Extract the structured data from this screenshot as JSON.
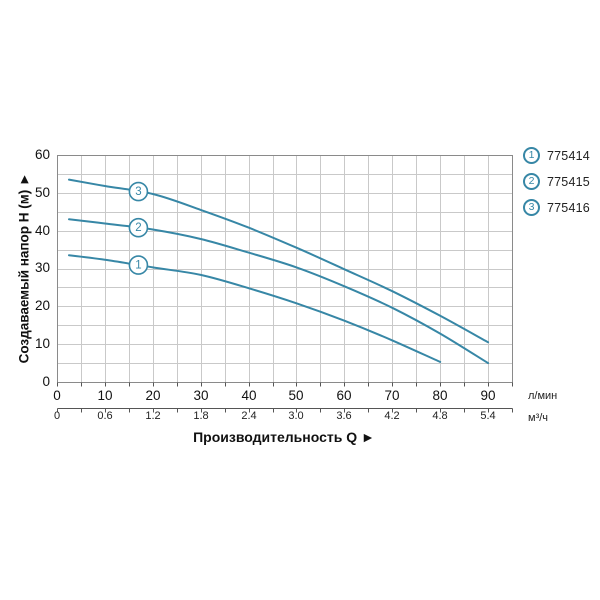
{
  "page": {
    "background": "#ffffff"
  },
  "colors": {
    "accent": "#3787a6",
    "grid": "#c9c9c9",
    "frame": "#8a8a8a",
    "axis": "#555555",
    "text": "#111111"
  },
  "chart_data": {
    "type": "line",
    "title": "",
    "xlabel": "Производительность Q ►",
    "ylabel": "Создаваемый напор H (м) ►",
    "xlim": [
      0,
      95
    ],
    "ylim": [
      0,
      60
    ],
    "grid_step": 5,
    "grid": true,
    "legend_position": "top-right",
    "y_axis": {
      "ticks": [
        "0",
        "10",
        "20",
        "30",
        "40",
        "50",
        "60"
      ]
    },
    "x_axis_primary": {
      "unit": "л/мин",
      "ticks": [
        "0",
        "10",
        "20",
        "30",
        "40",
        "50",
        "60",
        "70",
        "80",
        "90"
      ]
    },
    "x_axis_secondary": {
      "unit": "м³/ч",
      "ticks": [
        "0",
        "0.6",
        "1.2",
        "1.8",
        "2.4",
        "3.0",
        "3.6",
        "4.2",
        "4.8",
        "5.4"
      ]
    },
    "series": [
      {
        "id": "1",
        "model": "775414",
        "label_q": 17,
        "points": [
          [
            2.5,
            33.5
          ],
          [
            10,
            32.3
          ],
          [
            20,
            30.3
          ],
          [
            30,
            28.3
          ],
          [
            40,
            24.8
          ],
          [
            50,
            20.8
          ],
          [
            60,
            16.2
          ],
          [
            70,
            11
          ],
          [
            80,
            5.3
          ]
        ]
      },
      {
        "id": "2",
        "model": "775415",
        "label_q": 17,
        "points": [
          [
            2.5,
            43
          ],
          [
            10,
            41.9
          ],
          [
            20,
            40.3
          ],
          [
            30,
            37.8
          ],
          [
            40,
            34.2
          ],
          [
            50,
            30.3
          ],
          [
            60,
            25.3
          ],
          [
            70,
            19.6
          ],
          [
            80,
            12.8
          ],
          [
            90,
            5
          ]
        ]
      },
      {
        "id": "3",
        "model": "775416",
        "label_q": 17,
        "points": [
          [
            2.5,
            53.5
          ],
          [
            10,
            51.8
          ],
          [
            20,
            49.7
          ],
          [
            30,
            45.5
          ],
          [
            40,
            40.8
          ],
          [
            50,
            35.5
          ],
          [
            60,
            29.8
          ],
          [
            70,
            24
          ],
          [
            80,
            17.5
          ],
          [
            90,
            10.5
          ]
        ]
      }
    ]
  },
  "legend": {
    "items": [
      {
        "num": "1",
        "model": "775414"
      },
      {
        "num": "2",
        "model": "775415"
      },
      {
        "num": "3",
        "model": "775416"
      }
    ]
  }
}
